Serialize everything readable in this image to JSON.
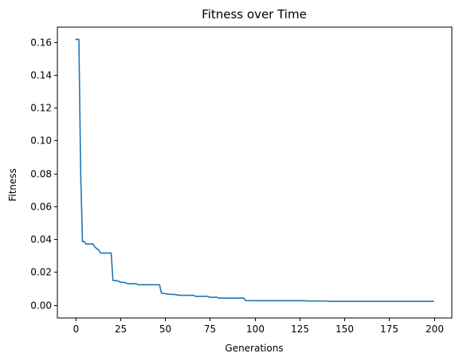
{
  "chart_data": {
    "type": "line",
    "title": "Fitness over Time",
    "xlabel": "Generations",
    "ylabel": "Fitness",
    "xlim": [
      -10,
      210
    ],
    "ylim": [
      -0.008,
      0.169
    ],
    "grid": false,
    "x_ticks": [
      0,
      25,
      50,
      75,
      100,
      125,
      150,
      175,
      200
    ],
    "x_tick_labels": [
      "0",
      "25",
      "50",
      "75",
      "100",
      "125",
      "150",
      "175",
      "200"
    ],
    "y_ticks": [
      0.0,
      0.02,
      0.04,
      0.06,
      0.08,
      0.1,
      0.12,
      0.14,
      0.16
    ],
    "y_tick_labels": [
      "0.00",
      "0.02",
      "0.04",
      "0.06",
      "0.08",
      "0.10",
      "0.12",
      "0.14",
      "0.16"
    ],
    "series": [
      {
        "color": "#1f77b4",
        "points": [
          [
            0,
            0.1615
          ],
          [
            2,
            0.1615
          ],
          [
            3,
            0.08
          ],
          [
            4,
            0.0385
          ],
          [
            5,
            0.0385
          ],
          [
            6,
            0.037
          ],
          [
            10,
            0.037
          ],
          [
            11,
            0.035
          ],
          [
            13,
            0.0335
          ],
          [
            14,
            0.0315
          ],
          [
            20,
            0.0315
          ],
          [
            21,
            0.0148
          ],
          [
            24,
            0.0145
          ],
          [
            25,
            0.0138
          ],
          [
            28,
            0.0135
          ],
          [
            29,
            0.0128
          ],
          [
            34,
            0.0128
          ],
          [
            35,
            0.0122
          ],
          [
            47,
            0.0122
          ],
          [
            48,
            0.0072
          ],
          [
            50,
            0.0068
          ],
          [
            52,
            0.0065
          ],
          [
            56,
            0.0062
          ],
          [
            58,
            0.0058
          ],
          [
            66,
            0.0058
          ],
          [
            67,
            0.0052
          ],
          [
            74,
            0.0052
          ],
          [
            75,
            0.0046
          ],
          [
            79,
            0.0046
          ],
          [
            80,
            0.0041
          ],
          [
            94,
            0.0041
          ],
          [
            95,
            0.0026
          ],
          [
            100,
            0.0025
          ],
          [
            128,
            0.0025
          ],
          [
            130,
            0.0023
          ],
          [
            140,
            0.0023
          ],
          [
            142,
            0.0021
          ],
          [
            200,
            0.0021
          ]
        ]
      }
    ]
  }
}
